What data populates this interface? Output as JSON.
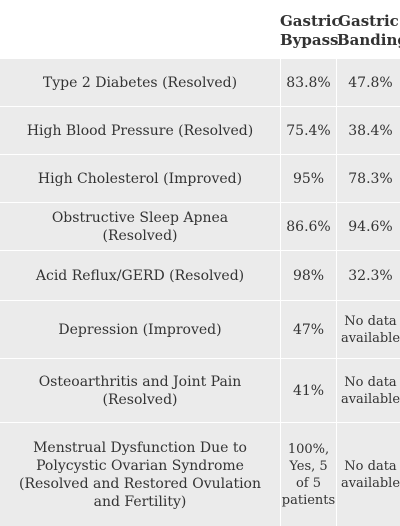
{
  "header": {
    "col_bypass": "Gastric Bypass",
    "col_banding": "Gastric Banding"
  },
  "rows": [
    {
      "condition": "Type 2 Diabetes (Resolved)",
      "bypass": "83.8%",
      "banding": "47.8%"
    },
    {
      "condition": "High Blood Pressure (Resolved)",
      "bypass": "75.4%",
      "banding": "38.4%"
    },
    {
      "condition": "High Cholesterol (Improved)",
      "bypass": "95%",
      "banding": "78.3%"
    },
    {
      "condition": "Obstructive Sleep Apnea (Resolved)",
      "bypass": "86.6%",
      "banding": "94.6%"
    },
    {
      "condition": "Acid Reflux/GERD (Resolved)",
      "bypass": "98%",
      "banding": "32.3%"
    },
    {
      "condition": "Depression (Improved)",
      "bypass": "47%",
      "banding": "No data available"
    },
    {
      "condition": "Osteoarthritis and Joint Pain (Resolved)",
      "bypass": "41%",
      "banding": "No data available"
    },
    {
      "condition": "Menstrual Dysfunction Due to Polycystic Ovarian Syndrome (Resolved and Restored Ovulation and Fertility)",
      "bypass": "100%, Yes, 5 of 5 patients",
      "banding": "No data available"
    }
  ]
}
